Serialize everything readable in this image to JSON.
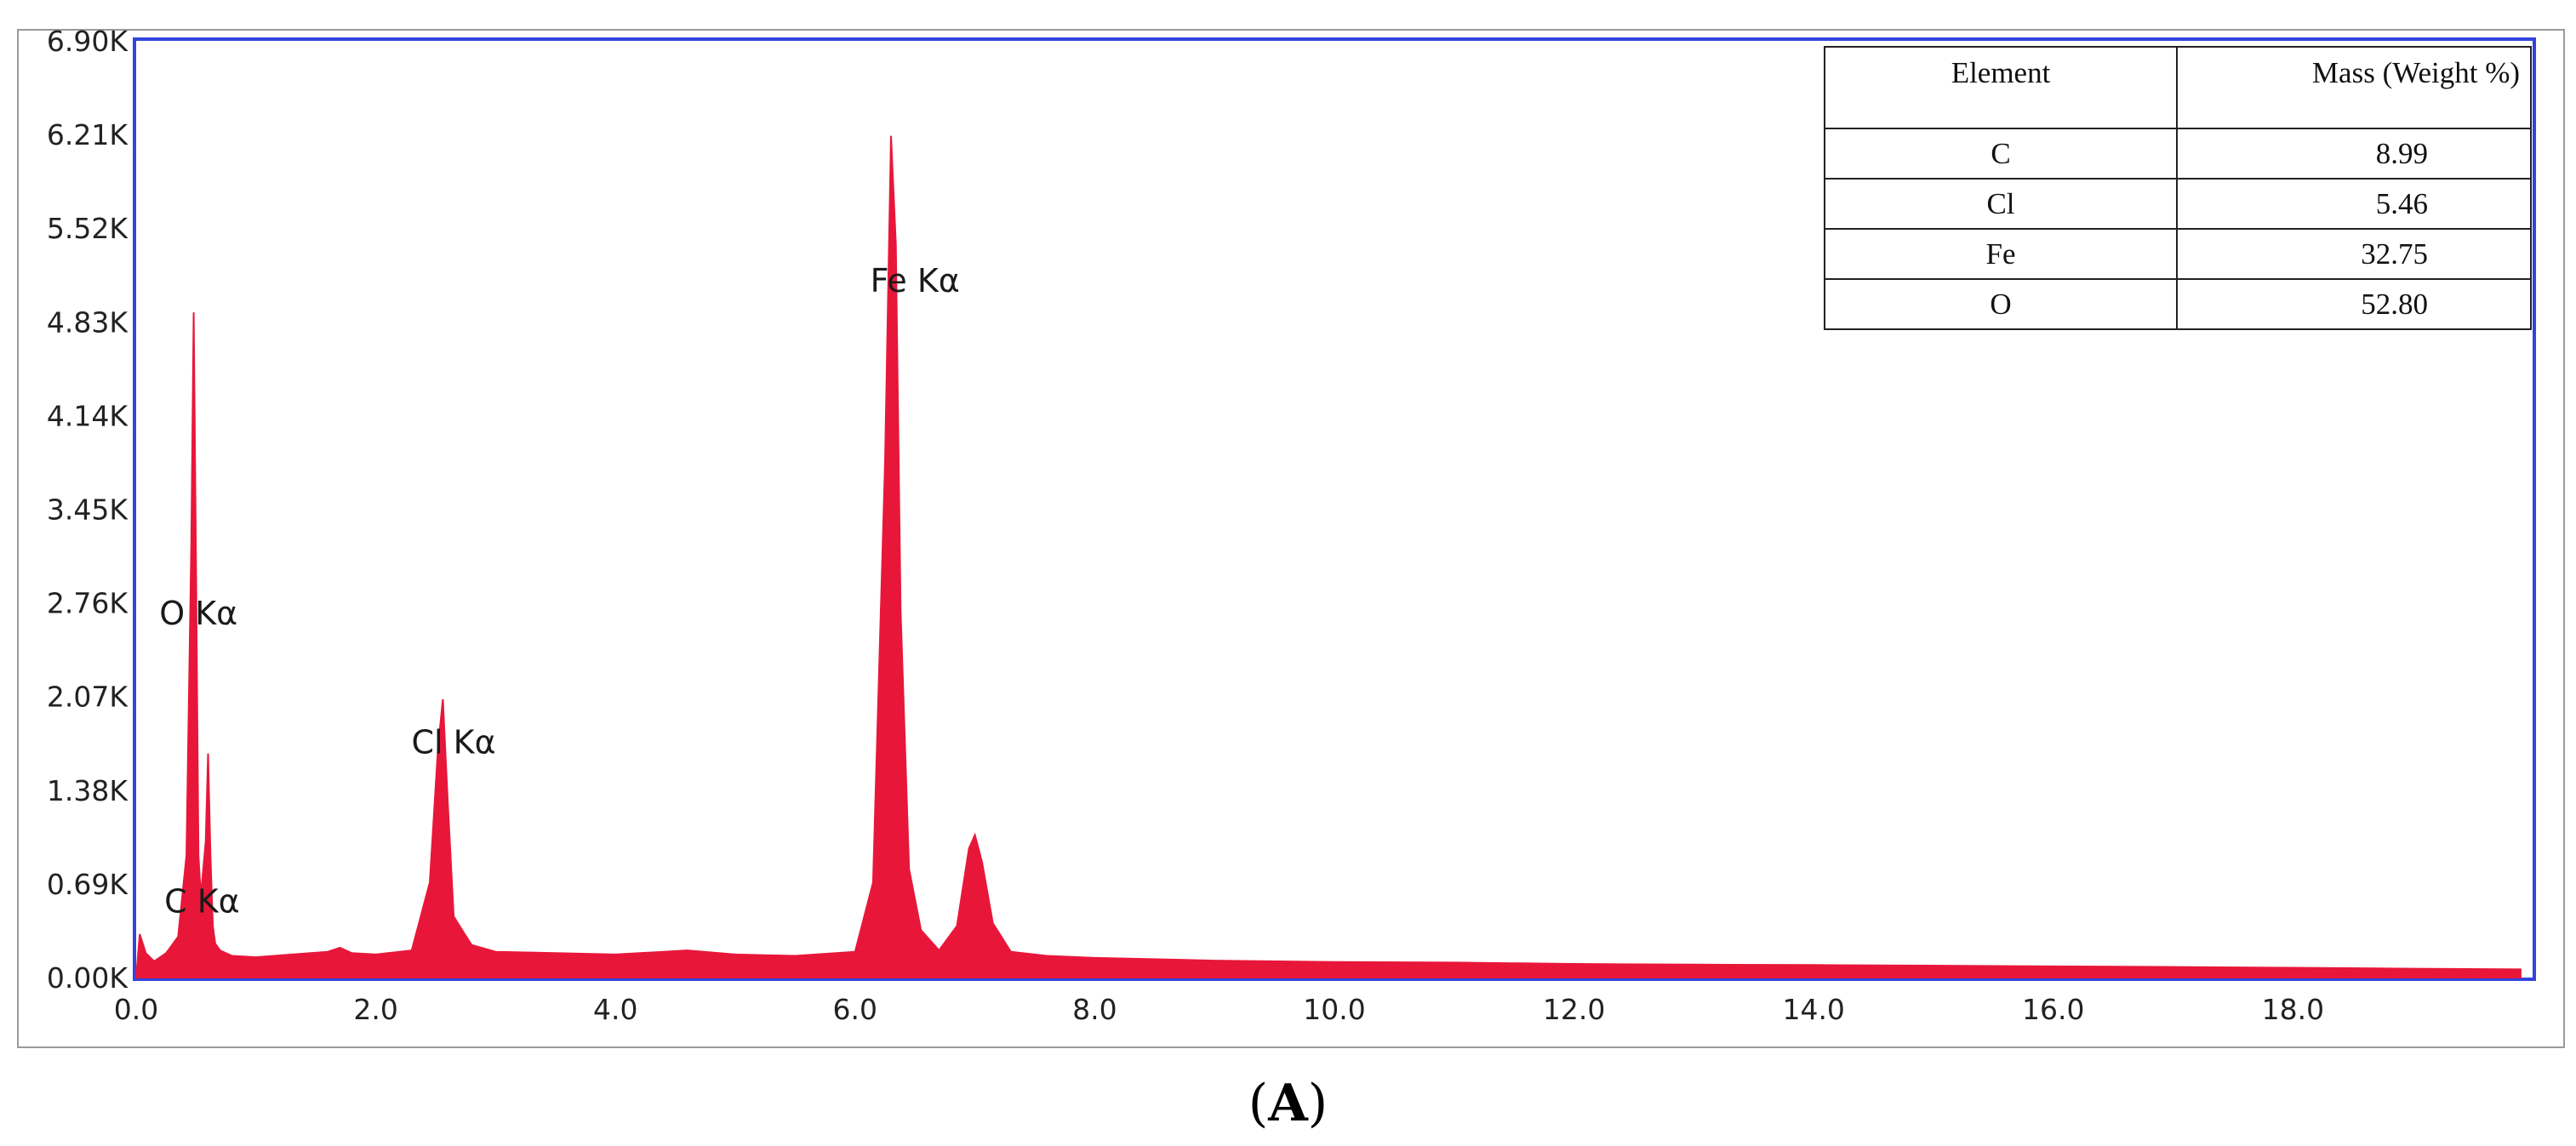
{
  "chart_data": {
    "type": "line",
    "xlim": [
      0,
      20
    ],
    "ylim": [
      0,
      6900
    ],
    "x_ticks": [
      "0.0",
      "2.0",
      "4.0",
      "6.0",
      "8.0",
      "10.0",
      "12.0",
      "14.0",
      "16.0",
      "18.0"
    ],
    "y_ticks": [
      "0.00K",
      "0.69K",
      "1.38K",
      "2.07K",
      "2.76K",
      "3.45K",
      "4.14K",
      "4.83K",
      "5.52K",
      "6.21K",
      "6.90K"
    ],
    "series": [
      {
        "color": "#e8173a",
        "x": [
          0.0,
          0.03,
          0.08,
          0.15,
          0.25,
          0.35,
          0.42,
          0.46,
          0.48,
          0.5,
          0.52,
          0.54,
          0.58,
          0.6,
          0.62,
          0.64,
          0.66,
          0.7,
          0.8,
          1.0,
          1.3,
          1.6,
          1.7,
          1.8,
          2.0,
          2.3,
          2.45,
          2.52,
          2.56,
          2.6,
          2.65,
          2.72,
          2.8,
          3.0,
          3.5,
          4.0,
          4.6,
          5.0,
          5.5,
          6.0,
          6.15,
          6.25,
          6.3,
          6.34,
          6.38,
          6.45,
          6.55,
          6.7,
          6.85,
          6.95,
          7.0,
          7.06,
          7.15,
          7.3,
          7.6,
          8.0,
          9.0,
          10.0,
          11.0,
          12.0,
          13.0,
          14.0,
          15.0,
          16.0,
          17.0,
          18.0,
          19.0,
          19.9
        ],
        "y": [
          0,
          320,
          180,
          120,
          180,
          300,
          900,
          3200,
          4900,
          3000,
          900,
          600,
          1000,
          1650,
          900,
          380,
          250,
          200,
          160,
          150,
          170,
          190,
          220,
          180,
          170,
          200,
          700,
          1700,
          2050,
          1300,
          450,
          350,
          240,
          190,
          180,
          170,
          200,
          170,
          160,
          190,
          700,
          3800,
          6200,
          5400,
          2700,
          800,
          350,
          200,
          380,
          950,
          1050,
          850,
          400,
          190,
          160,
          145,
          125,
          115,
          110,
          100,
          95,
          92,
          88,
          82,
          78,
          72,
          65,
          60
        ]
      }
    ],
    "peak_labels": [
      {
        "text": "O  Kα",
        "x": 0.52,
        "y": 2600
      },
      {
        "text": "C  Kα",
        "x": 0.55,
        "y": 480
      },
      {
        "text": "Cl Kα",
        "x": 2.65,
        "y": 1650
      },
      {
        "text": "Fe Kα",
        "x": 6.5,
        "y": 5050
      }
    ]
  },
  "composition_table": {
    "headers": [
      "Element",
      "Mass (Weight %)"
    ],
    "rows": [
      {
        "element": "C",
        "mass": "8.99"
      },
      {
        "element": "Cl",
        "mass": "5.46"
      },
      {
        "element": "Fe",
        "mass": "32.75"
      },
      {
        "element": "O",
        "mass": "52.80"
      }
    ]
  },
  "panel_label": {
    "open": "(",
    "letter": "A",
    "close": ")"
  },
  "colors": {
    "plot_border": "#3344dd",
    "spectrum_fill": "#e8173a",
    "label_highlight": "#f4a0ae"
  }
}
